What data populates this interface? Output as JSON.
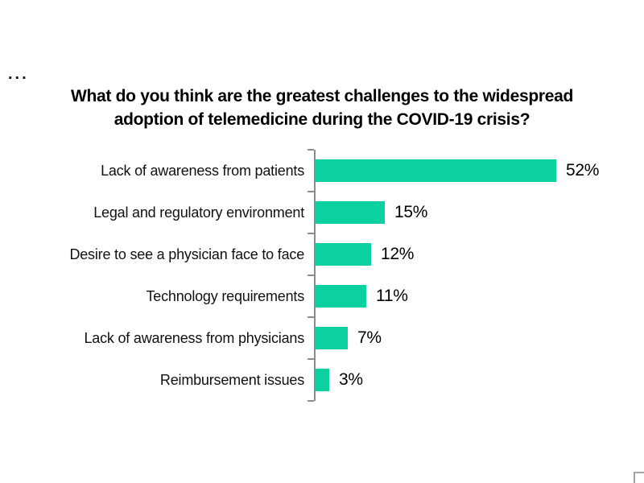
{
  "page": {
    "ellipsis": "...",
    "corner_icon": "partial-frame-icon"
  },
  "chart_data": {
    "type": "bar",
    "orientation": "horizontal",
    "title": "What do you think are the greatest challenges to the widespread adoption of telemedicine during the COVID-19 crisis?",
    "title_lines": [
      "What do you think are the greatest challenges to the widespread",
      "adoption of telemedicine during the COVID-19 crisis?"
    ],
    "categories": [
      "Lack of awareness from patients",
      "Legal and regulatory environment",
      "Desire to see a physician face to face",
      "Technology requirements",
      "Lack of awareness from physicians",
      "Reimbursement issues"
    ],
    "values": [
      52,
      15,
      12,
      11,
      7,
      3
    ],
    "value_labels": [
      "52%",
      "15%",
      "12%",
      "11%",
      "7%",
      "3%"
    ],
    "xlabel": "",
    "ylabel": "",
    "xlim": [
      0,
      70
    ],
    "grid": false,
    "legend": false,
    "colors": {
      "bar": "#0BD1A0",
      "axis": "#8C8C8C",
      "title_text": "#000000",
      "label_text": "#111111"
    }
  }
}
